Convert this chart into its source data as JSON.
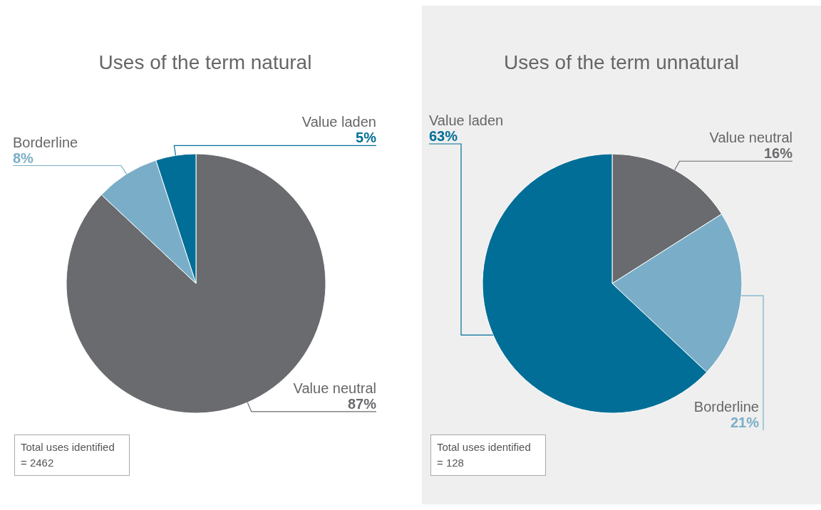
{
  "chart_data": [
    {
      "type": "pie",
      "title": "Uses of the term natural",
      "categories": [
        "Value neutral",
        "Borderline",
        "Value laden"
      ],
      "values": [
        87,
        8,
        5
      ],
      "value_labels": [
        "87%",
        "8%",
        "5%"
      ],
      "colors": [
        "#6a6b6f",
        "#7aaec8",
        "#006e96"
      ],
      "annotations": [
        "Total uses identified\n= 2462"
      ]
    },
    {
      "type": "pie",
      "title": "Uses of the term unnatural",
      "categories": [
        "Value neutral",
        "Borderline",
        "Value laden"
      ],
      "values": [
        16,
        21,
        63
      ],
      "value_labels": [
        "16%",
        "21%",
        "63%"
      ],
      "colors": [
        "#6a6b6f",
        "#7aaec8",
        "#006e96"
      ],
      "annotations": [
        "Total uses identified\n= 128"
      ]
    }
  ]
}
